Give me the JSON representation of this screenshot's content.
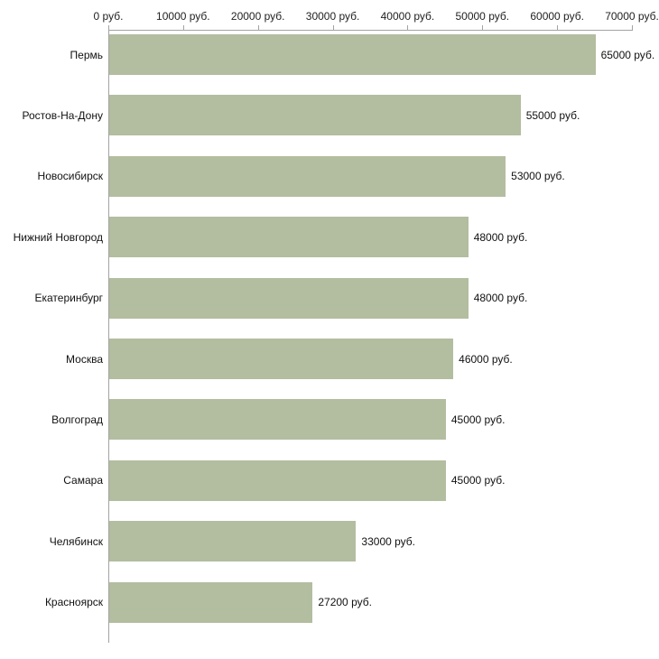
{
  "chart_data": {
    "type": "bar",
    "orientation": "horizontal",
    "title": "",
    "xlabel": "",
    "ylabel": "",
    "xlim": [
      0,
      70000
    ],
    "grid": false,
    "legend": false,
    "bar_color": "#b3bda0",
    "axis_color": "#a3a3a3",
    "categories": [
      "Пермь",
      "Ростов-На-Дону",
      "Новосибирск",
      "Нижний Новгород",
      "Екатеринбург",
      "Москва",
      "Волгоград",
      "Самара",
      "Челябинск",
      "Красноярск"
    ],
    "values": [
      65000,
      55000,
      53000,
      48000,
      48000,
      46000,
      45000,
      45000,
      33000,
      27200
    ],
    "value_labels": [
      "65000 руб.",
      "55000 руб.",
      "53000 руб.",
      "48000 руб.",
      "48000 руб.",
      "46000 руб.",
      "45000 руб.",
      "45000 руб.",
      "33000 руб.",
      "27200 руб."
    ],
    "x_tick_values": [
      0,
      10000,
      20000,
      30000,
      40000,
      50000,
      60000,
      70000
    ],
    "x_tick_labels": [
      "0 руб.",
      "10000 руб.",
      "20000 руб.",
      "30000 руб.",
      "40000 руб.",
      "50000 руб.",
      "60000 руб.",
      "70000 руб."
    ]
  }
}
